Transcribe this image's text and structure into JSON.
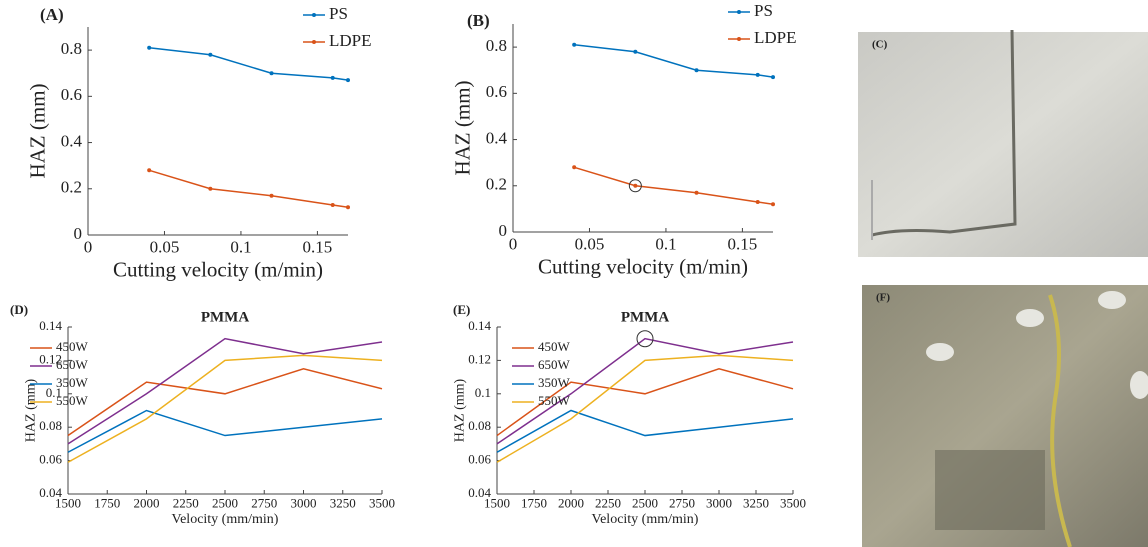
{
  "chart_data": [
    {
      "type": "line",
      "label": "(A)",
      "y_label": "HAZ (mm)",
      "x_label": "Cutting velocity (m/min)",
      "x": [
        0.04,
        0.08,
        0.12,
        0.16,
        0.17
      ],
      "xlim": [
        0,
        0.17
      ],
      "xticks": [
        0,
        0.05,
        0.1,
        0.15
      ],
      "ylim": [
        0,
        0.9
      ],
      "yticks": [
        0,
        0.2,
        0.4,
        0.6,
        0.8
      ],
      "markers": true,
      "legend": "upper right",
      "series": [
        {
          "name": "PS",
          "color": "#0072bd",
          "values": [
            0.81,
            0.78,
            0.7,
            0.68,
            0.67
          ]
        },
        {
          "name": "LDPE",
          "color": "#d95319",
          "values": [
            0.28,
            0.2,
            0.17,
            0.13,
            0.12
          ]
        }
      ]
    },
    {
      "type": "line",
      "label": "(B)",
      "y_label": "HAZ (mm)",
      "x_label": "Cutting velocity (m/min)",
      "x": [
        0.04,
        0.08,
        0.12,
        0.16,
        0.17
      ],
      "xlim": [
        0,
        0.17
      ],
      "xticks": [
        0,
        0.05,
        0.1,
        0.15
      ],
      "ylim": [
        0,
        0.9
      ],
      "yticks": [
        0,
        0.2,
        0.4,
        0.6,
        0.8
      ],
      "markers": true,
      "legend": "upper right",
      "highlight": {
        "series": 1,
        "point": 1
      },
      "series": [
        {
          "name": "PS",
          "color": "#0072bd",
          "values": [
            0.81,
            0.78,
            0.7,
            0.68,
            0.67
          ]
        },
        {
          "name": "LDPE",
          "color": "#d95319",
          "values": [
            0.28,
            0.2,
            0.17,
            0.13,
            0.12
          ]
        }
      ]
    },
    {
      "type": "line",
      "label": "(D)",
      "title": "PMMA",
      "y_label": "HAZ (mm)",
      "x_label": "Velocity (mm/min)",
      "x": [
        1500,
        2000,
        2500,
        3000,
        3500
      ],
      "xlim": [
        1500,
        3500
      ],
      "xticks": [
        1500,
        1750,
        2000,
        2250,
        2500,
        2750,
        3000,
        3250,
        3500
      ],
      "ylim": [
        0.04,
        0.14
      ],
      "yticks": [
        0.04,
        0.06,
        0.08,
        0.1,
        0.12,
        0.14
      ],
      "markers": false,
      "legend": "upper left",
      "series": [
        {
          "name": "450W",
          "color": "#d95319",
          "values": [
            0.075,
            0.107,
            0.1,
            0.115,
            0.103
          ]
        },
        {
          "name": "650W",
          "color": "#7e2f8e",
          "values": [
            0.07,
            0.1,
            0.133,
            0.124,
            0.131
          ]
        },
        {
          "name": "350W",
          "color": "#0072bd",
          "values": [
            0.065,
            0.09,
            0.075,
            0.08,
            0.085
          ]
        },
        {
          "name": "550W",
          "color": "#edb120",
          "values": [
            0.059,
            0.085,
            0.12,
            0.123,
            0.12
          ]
        }
      ]
    },
    {
      "type": "line",
      "label": "(E)",
      "title": "PMMA",
      "y_label": "HAZ (mm)",
      "x_label": "Velocity (mm/min)",
      "x": [
        1500,
        2000,
        2500,
        3000,
        3500
      ],
      "xlim": [
        1500,
        3500
      ],
      "xticks": [
        1500,
        1750,
        2000,
        2250,
        2500,
        2750,
        3000,
        3250,
        3500
      ],
      "ylim": [
        0.04,
        0.14
      ],
      "yticks": [
        0.04,
        0.06,
        0.08,
        0.1,
        0.12,
        0.14
      ],
      "markers": false,
      "legend": "upper left",
      "highlight": {
        "series": 1,
        "point": 2
      },
      "series": [
        {
          "name": "450W",
          "color": "#d95319",
          "values": [
            0.075,
            0.107,
            0.1,
            0.115,
            0.103
          ]
        },
        {
          "name": "650W",
          "color": "#7e2f8e",
          "values": [
            0.07,
            0.1,
            0.133,
            0.124,
            0.131
          ]
        },
        {
          "name": "350W",
          "color": "#0072bd",
          "values": [
            0.065,
            0.09,
            0.075,
            0.08,
            0.085
          ]
        },
        {
          "name": "550W",
          "color": "#edb120",
          "values": [
            0.059,
            0.085,
            0.12,
            0.123,
            0.12
          ]
        }
      ]
    }
  ],
  "photos": [
    {
      "label": "(C)"
    },
    {
      "label": "(F)"
    }
  ]
}
